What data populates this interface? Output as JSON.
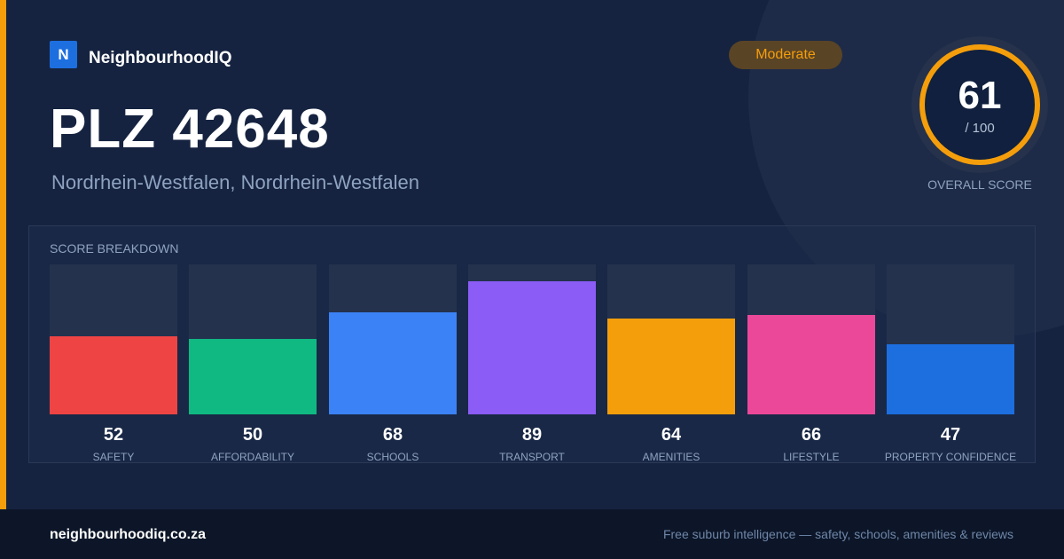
{
  "brand": {
    "logo_letter": "N",
    "name": "NeighbourhoodIQ",
    "color": "#1d6fe0"
  },
  "badge": {
    "label": "Moderate",
    "color": "#f59e0b"
  },
  "header": {
    "title": "PLZ 42648",
    "subtitle": "Nordrhein-Westfalen, Nordrhein-Westfalen"
  },
  "overall_score": {
    "value": "61",
    "max_label": "/ 100",
    "caption": "OVERALL SCORE",
    "ring_color": "#f59e0b"
  },
  "breakdown": {
    "title": "SCORE BREAKDOWN",
    "max": 100,
    "items": [
      {
        "label": "SAFETY",
        "value": "52",
        "score": 52,
        "color": "#ef4444"
      },
      {
        "label": "AFFORDABILITY",
        "value": "50",
        "score": 50,
        "color": "#10b981"
      },
      {
        "label": "SCHOOLS",
        "value": "68",
        "score": 68,
        "color": "#3b82f6"
      },
      {
        "label": "TRANSPORT",
        "value": "89",
        "score": 89,
        "color": "#8b5cf6"
      },
      {
        "label": "AMENITIES",
        "value": "64",
        "score": 64,
        "color": "#f59e0b"
      },
      {
        "label": "LIFESTYLE",
        "value": "66",
        "score": 66,
        "color": "#ec4899"
      },
      {
        "label": "PROPERTY CONFIDENCE",
        "value": "47",
        "score": 47,
        "color": "#1d6fe0"
      }
    ]
  },
  "footer": {
    "url": "neighbourhoodiq.co.za",
    "tagline": "Free suburb intelligence — safety, schools, amenities & reviews"
  }
}
